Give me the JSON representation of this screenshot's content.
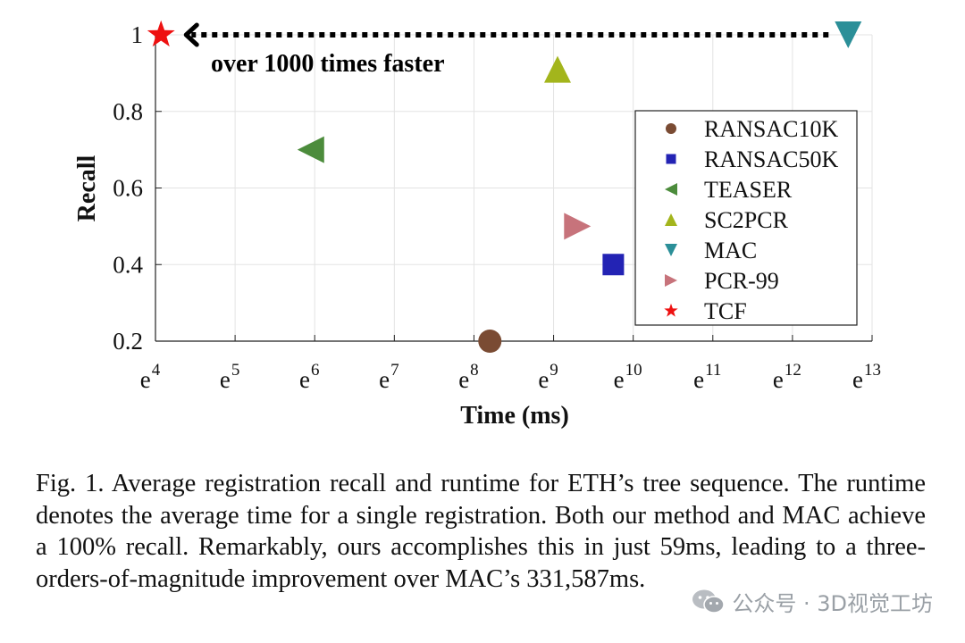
{
  "chart_data": {
    "type": "scatter",
    "xlabel": "Time (ms)",
    "ylabel": "Recall",
    "x_scale": "ln",
    "xlim": [
      4,
      13
    ],
    "ylim": [
      0.2,
      1.0
    ],
    "x_ticks": [
      {
        "base": "e",
        "exp": "4"
      },
      {
        "base": "e",
        "exp": "5"
      },
      {
        "base": "e",
        "exp": "6"
      },
      {
        "base": "e",
        "exp": "7"
      },
      {
        "base": "e",
        "exp": "8"
      },
      {
        "base": "e",
        "exp": "9"
      },
      {
        "base": "e",
        "exp": "10"
      },
      {
        "base": "e",
        "exp": "11"
      },
      {
        "base": "e",
        "exp": "12"
      },
      {
        "base": "e",
        "exp": "13"
      }
    ],
    "y_ticks": [
      "0.2",
      "0.4",
      "0.6",
      "0.8",
      "1"
    ],
    "y_tick_values": [
      0.2,
      0.4,
      0.6,
      0.8,
      1.0
    ],
    "grid": true,
    "legend_position": "right",
    "series": [
      {
        "name": "RANSAC10K",
        "marker": "circle",
        "color": "#7a4b33",
        "ln_time": 8.2,
        "recall": 0.2
      },
      {
        "name": "RANSAC50K",
        "marker": "square",
        "color": "#2323b4",
        "ln_time": 9.75,
        "recall": 0.4
      },
      {
        "name": "TEASER",
        "marker": "triangle-left",
        "color": "#4c8c3c",
        "ln_time": 5.95,
        "recall": 0.7
      },
      {
        "name": "SC2PCR",
        "marker": "triangle-up",
        "color": "#a3b51c",
        "ln_time": 9.05,
        "recall": 0.91
      },
      {
        "name": "MAC",
        "marker": "triangle-down",
        "color": "#2b8f98",
        "ln_time": 12.7,
        "recall": 1.0
      },
      {
        "name": "PCR-99",
        "marker": "triangle-right",
        "color": "#c7737b",
        "ln_time": 9.3,
        "recall": 0.5
      },
      {
        "name": "TCF",
        "marker": "star",
        "color": "#ee1111",
        "ln_time": 4.07,
        "recall": 1.0
      }
    ],
    "annotation": {
      "text": "over 1000 times faster",
      "from_ln_time": 12.7,
      "to_ln_time": 4.07,
      "recall": 1.0
    }
  },
  "caption": "Fig. 1.  Average registration recall and runtime for ETH’s tree sequence. The runtime denotes the average time for a single registration. Both our method and MAC achieve a 100% recall. Remarkably, ours accomplishes this in just 59ms, leading to a three-orders-of-magnitude improvement over MAC’s 331,587ms.",
  "watermark": "公众号 · 3D视觉工坊",
  "icons": {
    "watermark": "wechat-icon"
  }
}
